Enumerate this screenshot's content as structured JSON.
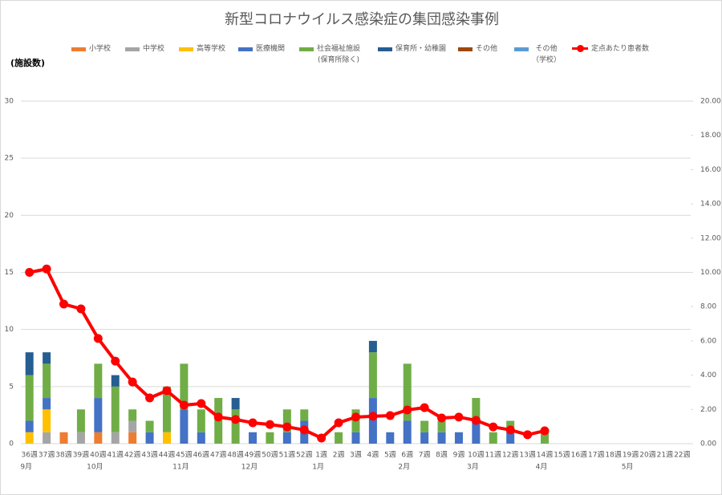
{
  "chart_data": {
    "type": "stacked-bar-line",
    "title": "新型コロナウイルス感染症の集団感染事例",
    "y_label": "(施設数)",
    "categories": [
      "36週",
      "37週",
      "38週",
      "39週",
      "40週",
      "41週",
      "42週",
      "43週",
      "44週",
      "45週",
      "46週",
      "47週",
      "48週",
      "49週",
      "50週",
      "51週",
      "52週",
      "1週",
      "2週",
      "3週",
      "4週",
      "5週",
      "6週",
      "7週",
      "8週",
      "9週",
      "10週",
      "11週",
      "12週",
      "13週",
      "14週",
      "15週",
      "16週",
      "17週",
      "18週",
      "19週",
      "20週",
      "21週",
      "22週"
    ],
    "months": [
      "9月",
      null,
      null,
      null,
      "10月",
      null,
      null,
      null,
      null,
      "11月",
      null,
      null,
      null,
      "12月",
      null,
      null,
      null,
      "1月",
      null,
      null,
      null,
      null,
      "2月",
      null,
      null,
      null,
      "3月",
      null,
      null,
      null,
      "4月",
      null,
      null,
      null,
      null,
      "5月",
      null,
      null,
      null
    ],
    "series": [
      {
        "name": "小学校",
        "color": "#ed7d31",
        "values": [
          0,
          0,
          1,
          0,
          1,
          0,
          1,
          0,
          0,
          0,
          0,
          0,
          0,
          0,
          0,
          0,
          0,
          0,
          0,
          0,
          0,
          0,
          0,
          0,
          0,
          0,
          0,
          0,
          0,
          0,
          0,
          0,
          0,
          0,
          0,
          0,
          0,
          0,
          0
        ]
      },
      {
        "name": "中学校",
        "color": "#a5a5a5",
        "values": [
          0,
          1,
          0,
          1,
          0,
          1,
          1,
          0,
          0,
          0,
          0,
          0,
          0,
          0,
          0,
          0,
          0,
          0,
          0,
          0,
          0,
          0,
          0,
          0,
          0,
          0,
          0,
          0,
          0,
          0,
          0,
          0,
          0,
          0,
          0,
          0,
          0,
          0,
          0
        ]
      },
      {
        "name": "高等学校",
        "color": "#ffc000",
        "values": [
          1,
          2,
          0,
          0,
          0,
          0,
          0,
          0,
          1,
          0,
          0,
          0,
          0,
          0,
          0,
          0,
          0,
          0,
          0,
          0,
          0,
          0,
          0,
          0,
          0,
          0,
          0,
          0,
          0,
          0,
          0,
          0,
          0,
          0,
          0,
          0,
          0,
          0,
          0
        ]
      },
      {
        "name": "医療機関",
        "color": "#4472c4",
        "values": [
          1,
          1,
          0,
          0,
          3,
          0,
          0,
          1,
          0,
          3,
          1,
          0,
          0,
          1,
          0,
          1,
          2,
          0,
          0,
          1,
          4,
          1,
          2,
          1,
          1,
          1,
          2,
          0,
          1,
          0,
          0,
          0,
          0,
          0,
          0,
          0,
          0,
          0,
          0
        ]
      },
      {
        "name": "社会福祉施設\n(保育所除く)",
        "color": "#70ad47",
        "values": [
          4,
          3,
          0,
          2,
          3,
          4,
          1,
          1,
          4,
          4,
          2,
          4,
          3,
          0,
          1,
          2,
          1,
          0,
          1,
          2,
          4,
          0,
          5,
          1,
          1,
          0,
          2,
          1,
          1,
          0,
          1,
          0,
          0,
          0,
          0,
          0,
          0,
          0,
          0
        ]
      },
      {
        "name": "保育所・幼稚園",
        "color": "#255e91",
        "values": [
          2,
          1,
          0,
          0,
          0,
          1,
          0,
          0,
          0,
          0,
          0,
          0,
          1,
          0,
          0,
          0,
          0,
          0,
          0,
          0,
          1,
          0,
          0,
          0,
          0,
          0,
          0,
          0,
          0,
          0,
          0,
          0,
          0,
          0,
          0,
          0,
          0,
          0,
          0
        ]
      },
      {
        "name": "その他",
        "color": "#9e480e",
        "values": [
          0,
          0,
          0,
          0,
          0,
          0,
          0,
          0,
          0,
          0,
          0,
          0,
          0,
          0,
          0,
          0,
          0,
          0,
          0,
          0,
          0,
          0,
          0,
          0,
          0,
          0,
          0,
          0,
          0,
          0,
          0,
          0,
          0,
          0,
          0,
          0,
          0,
          0,
          0
        ]
      },
      {
        "name": "その他\n（学校）",
        "color": "#5b9bd5",
        "values": [
          0,
          0,
          0,
          0,
          0,
          0,
          0,
          0,
          0,
          0,
          0,
          0,
          0,
          0,
          0,
          0,
          0,
          0,
          0,
          0,
          0,
          0,
          0,
          0,
          0,
          0,
          0,
          0,
          0,
          0,
          0,
          0,
          0,
          0,
          0,
          0,
          0,
          0,
          0
        ]
      },
      {
        "name": "定点あたり患者数",
        "color": "#ff0000",
        "axis": "y2",
        "kind": "line",
        "values": [
          10.0,
          10.2,
          8.15,
          7.87,
          6.14,
          4.82,
          3.6,
          2.67,
          3.09,
          2.25,
          2.34,
          1.55,
          1.41,
          1.22,
          1.12,
          0.98,
          0.8,
          0.33,
          1.22,
          1.55,
          1.6,
          1.64,
          1.97,
          2.1,
          1.5,
          1.55,
          1.36,
          0.98,
          0.8,
          0.52,
          0.75,
          null,
          null,
          null,
          null,
          null,
          null,
          null,
          null
        ]
      }
    ],
    "ylim": [
      0,
      30
    ],
    "yticks": [
      0,
      5,
      10,
      15,
      20,
      25,
      30
    ],
    "y2lim": [
      0,
      20
    ],
    "y2ticks": [
      {
        "value": 0,
        "label": "0.00"
      },
      {
        "value": 2,
        "label": "2.00"
      },
      {
        "value": 4,
        "label": "4.00"
      },
      {
        "value": 6,
        "label": "6.00"
      },
      {
        "value": 8,
        "label": "8.00"
      },
      {
        "value": 10,
        "label": "10.00"
      },
      {
        "value": 12,
        "label": "12.00"
      },
      {
        "value": 14,
        "label": "14.00"
      },
      {
        "value": 16,
        "label": "16.00"
      },
      {
        "value": 18,
        "label": "18.00"
      },
      {
        "value": 20,
        "label": "20.00"
      }
    ],
    "grid": true,
    "legend": "top"
  }
}
